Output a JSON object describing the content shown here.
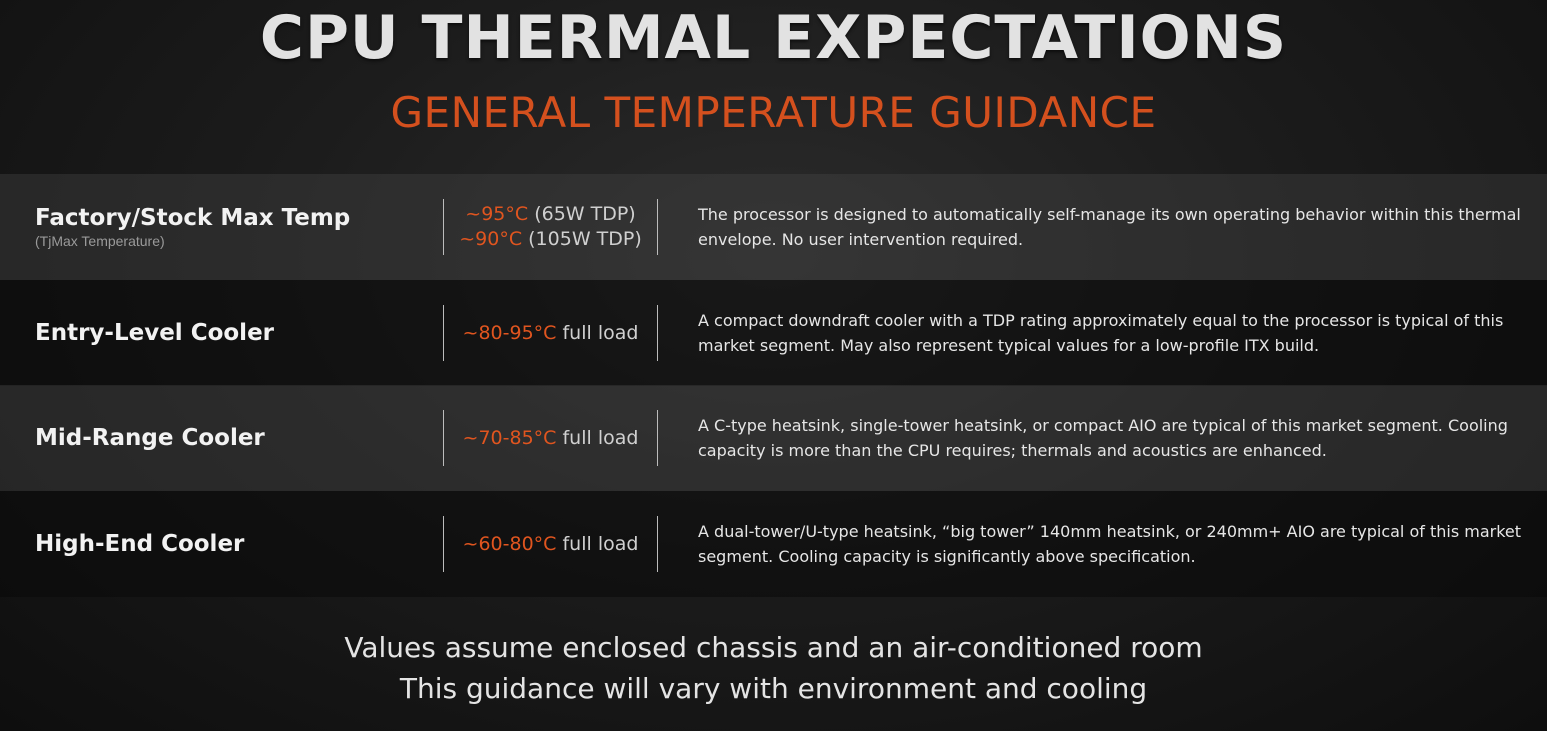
{
  "title": "CPU THERMAL EXPECTATIONS",
  "subtitle": "GENERAL TEMPERATURE GUIDANCE",
  "rows": [
    {
      "label": "Factory/Stock Max Temp",
      "sublabel": "(TjMax Temperature)",
      "temps": [
        {
          "value": "~95°C",
          "note": " (65W TDP)"
        },
        {
          "value": "~90°C",
          "note": " (105W TDP)"
        }
      ],
      "description": "The processor is designed to automatically self-manage its own operating behavior within this thermal envelope. No user intervention required."
    },
    {
      "label": "Entry-Level Cooler",
      "sublabel": "",
      "temps": [
        {
          "value": "~80-95°C",
          "note": " full load"
        }
      ],
      "description": "A compact downdraft cooler with a TDP rating approximately equal to the processor is typical of this market segment. May also represent typical values for a low-profile ITX build."
    },
    {
      "label": "Mid-Range Cooler",
      "sublabel": "",
      "temps": [
        {
          "value": "~70-85°C",
          "note": " full load"
        }
      ],
      "description": "A C-type heatsink, single-tower heatsink, or compact AIO are typical of this market segment. Cooling capacity is more than the CPU requires; thermals and acoustics are enhanced."
    },
    {
      "label": "High-End Cooler",
      "sublabel": "",
      "temps": [
        {
          "value": "~60-80°C",
          "note": " full load"
        }
      ],
      "description": "A dual-tower/U-type heatsink, “big tower” 140mm heatsink, or 240mm+ AIO are typical of this market segment. Cooling capacity is significantly above specification."
    }
  ],
  "footnotes": [
    "Values assume enclosed chassis and an air-conditioned room",
    "This guidance will vary with environment and cooling"
  ],
  "colors": {
    "accent": "#d4501e",
    "temperature": "#e0551f",
    "text": "#e6e6e6"
  }
}
